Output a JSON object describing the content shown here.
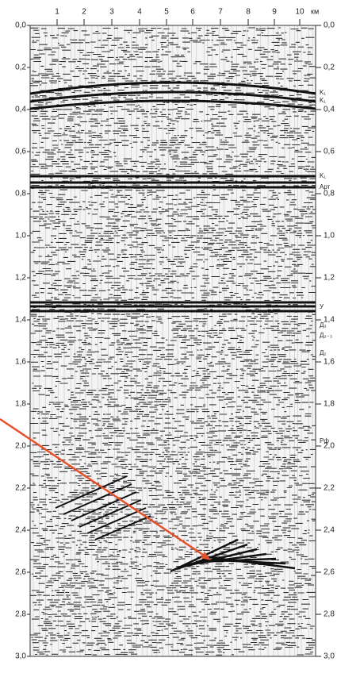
{
  "top_axis": {
    "labels": [
      "1",
      "2",
      "3",
      "4",
      "5",
      "6",
      "7",
      "8",
      "9",
      "10"
    ],
    "unit": "км"
  },
  "left_axis": {
    "labels": [
      "0,0",
      "0,2",
      "0,4",
      "0,6",
      "0,8",
      "1,0",
      "1,2",
      "1,4",
      "1,6",
      "1,8",
      "2,0",
      "2,2",
      "2,4",
      "2,6",
      "2,8",
      "3,0"
    ]
  },
  "right_axis": {
    "labels": [
      "0,0",
      "0,2",
      "0,4",
      "0,6",
      "0,8",
      "1,0",
      "1,2",
      "1,4",
      "1,6",
      "1,8",
      "2,0",
      "2,2",
      "2,4",
      "2,6",
      "2,8",
      "3,0"
    ]
  },
  "horizons": [
    "K₁",
    "K₁",
    "K₁",
    "Арт",
    "У",
    "Д₃",
    "Д₂₋₃",
    "Д₂",
    "Рф"
  ]
}
